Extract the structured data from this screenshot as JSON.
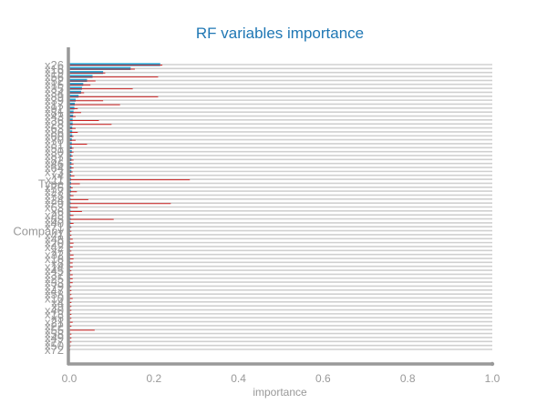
{
  "chart_data": {
    "type": "bar",
    "orientation": "horizontal",
    "title": "RF variables importance",
    "xlabel": "importance",
    "ylabel": "",
    "xlim": [
      0,
      1.0
    ],
    "x_ticks": [
      "0.0",
      "0.2",
      "0.4",
      "0.6",
      "0.8",
      "1.0"
    ],
    "grid": true,
    "legend": "none",
    "colors": {
      "bar": "#1f9fcf",
      "error": "#cc2222",
      "grid": "#d0d0d0",
      "axis": "#999999",
      "title": "#1f77b4"
    },
    "categories": [
      "x26",
      "x16",
      "x19",
      "x56",
      "x52",
      "x15",
      "x35",
      "x34",
      "x89",
      "x39",
      "x17",
      "x92",
      "x81",
      "x43",
      "x36",
      "x28",
      "x63",
      "x86",
      "x60",
      "x70",
      "x31",
      "x51",
      "x30",
      "x87",
      "x82",
      "x46",
      "x64",
      "x73",
      "x4",
      "x11",
      "Type",
      "x76",
      "x27",
      "x78",
      "x24",
      "x29",
      "x63",
      "x6",
      "x23",
      "x85",
      "x40",
      "x71",
      "Company",
      "x41",
      "x48",
      "x20",
      "x42",
      "x7",
      "x32",
      "x18",
      "x8",
      "x14",
      "x45",
      "x37",
      "x25",
      "x33",
      "x79",
      "x47",
      "x58",
      "x10",
      "x4",
      "x9",
      "x40",
      "x13",
      "x5",
      "x21",
      "x22",
      "x55",
      "x58",
      "x49",
      "x77",
      "x50",
      "x72"
    ],
    "values": [
      0.215,
      0.145,
      0.08,
      0.055,
      0.042,
      0.033,
      0.03,
      0.028,
      0.022,
      0.015,
      0.013,
      0.012,
      0.01,
      0.009,
      0.008,
      0.008,
      0.007,
      0.007,
      0.007,
      0.006,
      0.006,
      0.006,
      0.006,
      0.005,
      0.005,
      0.005,
      0.005,
      0.005,
      0.004,
      0.004,
      0.004,
      0.004,
      0.004,
      0.003,
      0.003,
      0.003,
      0.003,
      0.003,
      0.003,
      0.003,
      0.003,
      0.003,
      0.002,
      0.002,
      0.002,
      0.002,
      0.002,
      0.002,
      0.002,
      0.002,
      0.002,
      0.002,
      0.002,
      0.002,
      0.002,
      0.002,
      0.002,
      0.001,
      0.001,
      0.001,
      0.001,
      0.001,
      0.001,
      0.001,
      0.001,
      0.001,
      0.001,
      0.001,
      0.001,
      0.001,
      0.001,
      0.001,
      0.0
    ],
    "errors": [
      0.22,
      0.155,
      0.085,
      0.21,
      0.062,
      0.05,
      0.15,
      0.035,
      0.21,
      0.08,
      0.12,
      0.02,
      0.028,
      0.015,
      0.07,
      0.1,
      0.015,
      0.02,
      0.01,
      0.015,
      0.042,
      0.01,
      0.01,
      0.008,
      0.01,
      0.01,
      0.01,
      0.008,
      0.012,
      0.285,
      0.025,
      0.008,
      0.018,
      0.01,
      0.045,
      0.24,
      0.02,
      0.03,
      0.01,
      0.105,
      0.01,
      0.005,
      0.005,
      0.005,
      0.008,
      0.01,
      0.008,
      0.005,
      0.01,
      0.01,
      0.008,
      0.008,
      0.005,
      0.008,
      0.008,
      0.008,
      0.005,
      0.005,
      0.005,
      0.008,
      0.005,
      0.005,
      0.005,
      0.005,
      0.005,
      0.008,
      0.005,
      0.06,
      0.005,
      0.005,
      0.005,
      0.003,
      0.002
    ]
  }
}
